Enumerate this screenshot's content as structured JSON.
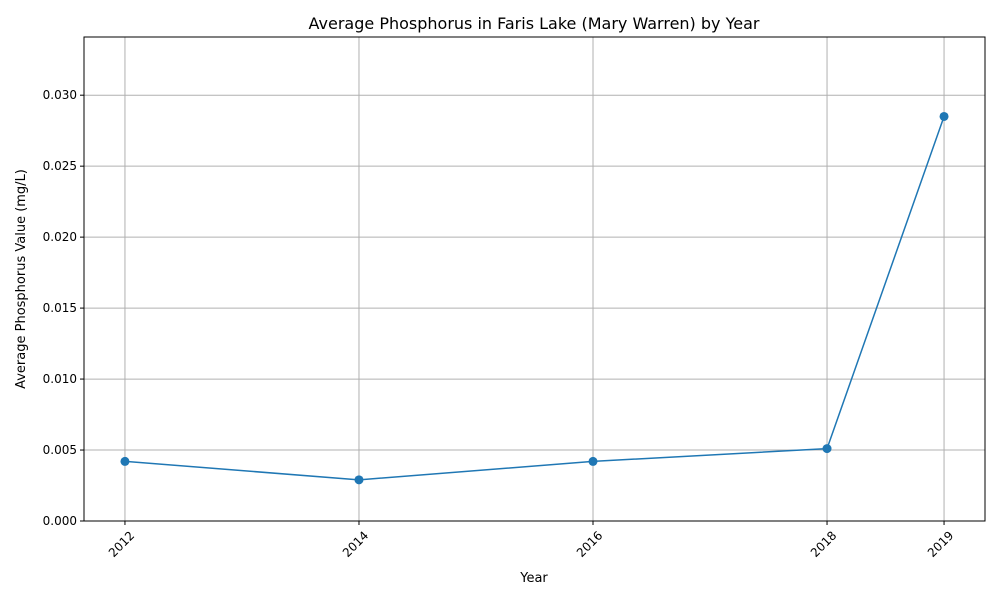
{
  "chart_data": {
    "type": "line",
    "title": "Average Phosphorus in Faris Lake (Mary Warren) by Year",
    "xlabel": "Year",
    "ylabel": "Average Phosphorus Value (mg/L)",
    "x": [
      2012,
      2014,
      2016,
      2018,
      2019
    ],
    "x_tick_labels": [
      "2012",
      "2014",
      "2016",
      "2018",
      "2019"
    ],
    "y_ticks": [
      0.0,
      0.005,
      0.01,
      0.015,
      0.02,
      0.025,
      0.03
    ],
    "y_tick_labels": [
      "0.000",
      "0.005",
      "0.010",
      "0.015",
      "0.020",
      "0.025",
      "0.030"
    ],
    "xlim": [
      2011.65,
      2019.35
    ],
    "ylim": [
      0,
      0.0341
    ],
    "grid": true,
    "series": [
      {
        "values": [
          0.0042,
          0.0029,
          0.0042,
          0.0051,
          0.0285
        ],
        "color": "#1f77b4",
        "marker": "circle"
      }
    ]
  }
}
